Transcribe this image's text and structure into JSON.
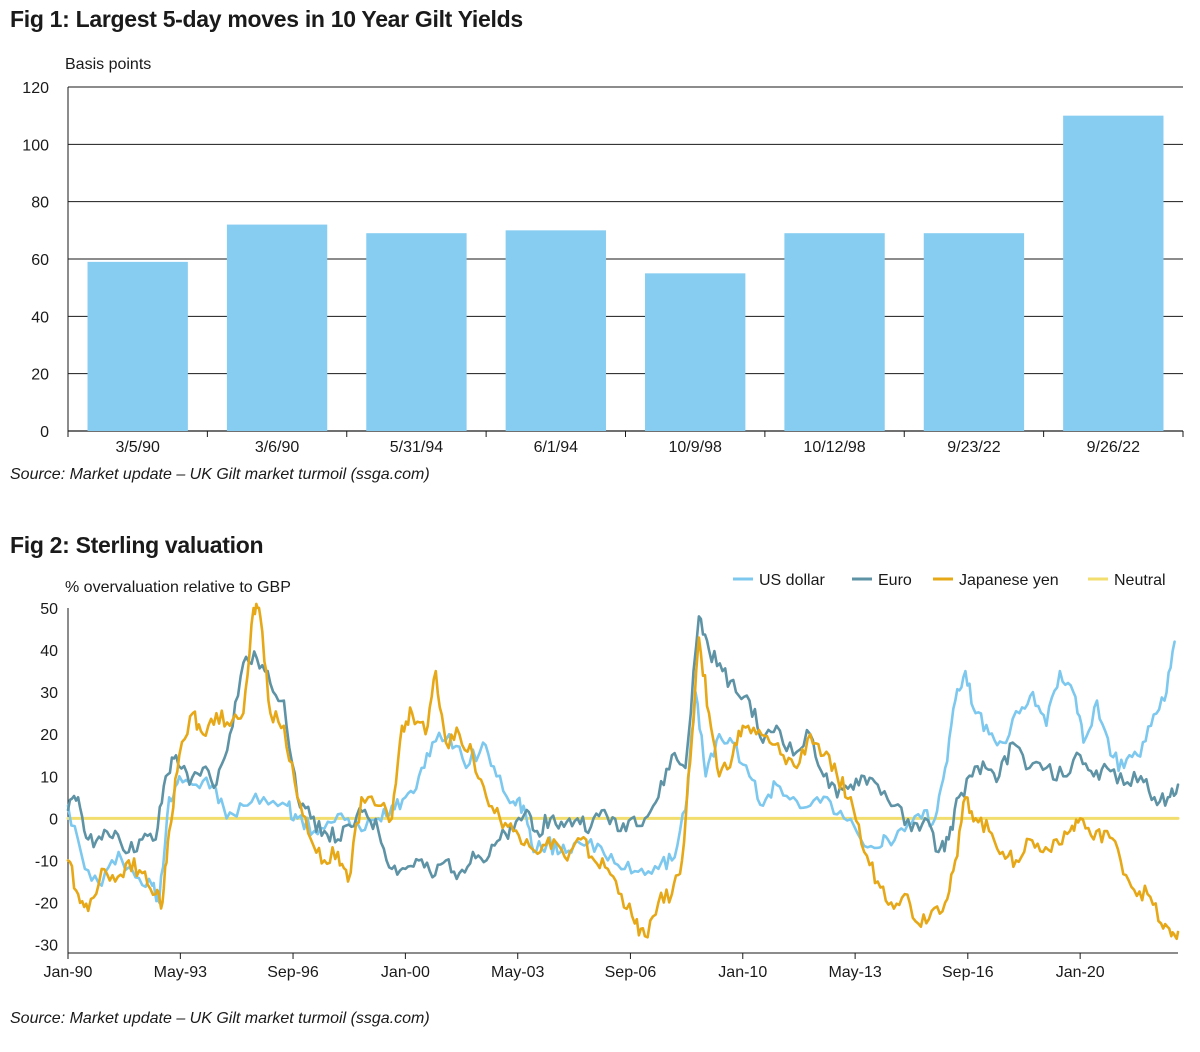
{
  "fig1": {
    "title": "Fig 1: Largest 5-day moves in 10 Year Gilt Yields",
    "source": "Source: Market update – UK Gilt market turmoil (ssga.com)"
  },
  "fig2": {
    "title": "Fig 2: Sterling valuation",
    "source": "Source: Market update – UK Gilt market turmoil (ssga.com)"
  },
  "chart_data": [
    {
      "type": "bar",
      "title": "Fig 1: Largest 5-day moves in 10 Year Gilt Yields",
      "ylabel": "Basis points",
      "xlabel": "",
      "categories": [
        "3/5/90",
        "3/6/90",
        "5/31/94",
        "6/1/94",
        "10/9/98",
        "10/12/98",
        "9/23/22",
        "9/26/22"
      ],
      "values": [
        59,
        72,
        69,
        70,
        55,
        69,
        69,
        110
      ],
      "ylim": [
        0,
        120
      ],
      "yticks": [
        0,
        20,
        40,
        60,
        80,
        100,
        120
      ],
      "grid": true,
      "colors": {
        "bar": "#87cdf2"
      }
    },
    {
      "type": "line",
      "title": "Fig 2: Sterling valuation",
      "ylabel": "% overvaluation relative to GBP",
      "xlabel": "",
      "xlim": [
        1990.0,
        2022.9
      ],
      "ylim": [
        -32,
        50
      ],
      "yticks": [
        -30,
        -20,
        -10,
        0,
        10,
        20,
        30,
        40,
        50
      ],
      "xticks": [
        {
          "label": "Jan-90",
          "x": 1990.0
        },
        {
          "label": "May-93",
          "x": 1993.33
        },
        {
          "label": "Sep-96",
          "x": 1996.67
        },
        {
          "label": "Jan-00",
          "x": 2000.0
        },
        {
          "label": "May-03",
          "x": 2003.33
        },
        {
          "label": "Sep-06",
          "x": 2006.67
        },
        {
          "label": "Jan-10",
          "x": 2010.0
        },
        {
          "label": "May-13",
          "x": 2013.33
        },
        {
          "label": "Sep-16",
          "x": 2016.67
        },
        {
          "label": "Jan-20",
          "x": 2020.0
        }
      ],
      "legend_position": "top-right",
      "series": [
        {
          "name": "US dollar",
          "color": "#7dc8ee",
          "points": [
            [
              1990.0,
              3
            ],
            [
              1990.5,
              -12
            ],
            [
              1991.0,
              -16
            ],
            [
              1991.5,
              -8
            ],
            [
              1992.0,
              -14
            ],
            [
              1992.5,
              -16
            ],
            [
              1992.7,
              -20
            ],
            [
              1993.0,
              5
            ],
            [
              1993.3,
              10
            ],
            [
              1993.8,
              8
            ],
            [
              1994.3,
              8
            ],
            [
              1994.7,
              0
            ],
            [
              1995.2,
              3
            ],
            [
              1995.8,
              5
            ],
            [
              1996.5,
              3
            ],
            [
              1996.8,
              0
            ],
            [
              1997.3,
              -3
            ],
            [
              1997.8,
              -1
            ],
            [
              1998.3,
              0
            ],
            [
              1998.7,
              -3
            ],
            [
              1999.2,
              0
            ],
            [
              1999.6,
              3
            ],
            [
              2000.0,
              5
            ],
            [
              2000.4,
              10
            ],
            [
              2000.8,
              18
            ],
            [
              2001.3,
              20
            ],
            [
              2001.8,
              12
            ],
            [
              2002.3,
              18
            ],
            [
              2002.7,
              10
            ],
            [
              2003.2,
              4
            ],
            [
              2003.5,
              3
            ],
            [
              2003.8,
              -8
            ],
            [
              2004.2,
              -6
            ],
            [
              2004.6,
              -8
            ],
            [
              2005.0,
              -6
            ],
            [
              2005.5,
              -5
            ],
            [
              2006.0,
              -10
            ],
            [
              2006.5,
              -12
            ],
            [
              2007.0,
              -12
            ],
            [
              2007.5,
              -12
            ],
            [
              2007.9,
              -10
            ],
            [
              2008.3,
              2
            ],
            [
              2008.6,
              30
            ],
            [
              2008.9,
              10
            ],
            [
              2009.3,
              20
            ],
            [
              2009.7,
              18
            ],
            [
              2010.2,
              10
            ],
            [
              2010.6,
              3
            ],
            [
              2011.0,
              8
            ],
            [
              2011.5,
              5
            ],
            [
              2012.0,
              3
            ],
            [
              2012.5,
              5
            ],
            [
              2013.0,
              0
            ],
            [
              2013.5,
              -5
            ],
            [
              2014.0,
              -7
            ],
            [
              2014.3,
              -5
            ],
            [
              2014.8,
              -3
            ],
            [
              2015.3,
              0
            ],
            [
              2015.7,
              0
            ],
            [
              2016.0,
              12
            ],
            [
              2016.3,
              28
            ],
            [
              2016.6,
              35
            ],
            [
              2016.9,
              25
            ],
            [
              2017.3,
              20
            ],
            [
              2017.7,
              18
            ],
            [
              2018.2,
              25
            ],
            [
              2018.6,
              30
            ],
            [
              2019.0,
              22
            ],
            [
              2019.4,
              35
            ],
            [
              2019.8,
              30
            ],
            [
              2020.1,
              18
            ],
            [
              2020.5,
              28
            ],
            [
              2020.9,
              15
            ],
            [
              2021.3,
              12
            ],
            [
              2021.7,
              15
            ],
            [
              2022.1,
              22
            ],
            [
              2022.5,
              28
            ],
            [
              2022.8,
              42
            ]
          ]
        },
        {
          "name": "Euro",
          "color": "#5e93a6",
          "points": [
            [
              1990.0,
              2
            ],
            [
              1990.3,
              5
            ],
            [
              1990.6,
              -5
            ],
            [
              1991.0,
              -5
            ],
            [
              1991.4,
              -3
            ],
            [
              1991.8,
              -8
            ],
            [
              1992.2,
              -5
            ],
            [
              1992.6,
              -5
            ],
            [
              1992.9,
              10
            ],
            [
              1993.2,
              15
            ],
            [
              1993.6,
              8
            ],
            [
              1994.0,
              12
            ],
            [
              1994.4,
              8
            ],
            [
              1994.8,
              20
            ],
            [
              1995.2,
              37
            ],
            [
              1995.6,
              38
            ],
            [
              1996.0,
              32
            ],
            [
              1996.4,
              28
            ],
            [
              1996.8,
              5
            ],
            [
              1997.2,
              0
            ],
            [
              1997.6,
              -3
            ],
            [
              1998.0,
              -5
            ],
            [
              1998.4,
              -2
            ],
            [
              1998.8,
              2
            ],
            [
              1999.2,
              -3
            ],
            [
              1999.6,
              -12
            ],
            [
              2000.0,
              -12
            ],
            [
              2000.4,
              -10
            ],
            [
              2000.8,
              -14
            ],
            [
              2001.2,
              -10
            ],
            [
              2001.6,
              -13
            ],
            [
              2002.0,
              -8
            ],
            [
              2002.4,
              -10
            ],
            [
              2002.8,
              -5
            ],
            [
              2003.2,
              -3
            ],
            [
              2003.6,
              2
            ],
            [
              2003.9,
              -3
            ],
            [
              2004.3,
              0
            ],
            [
              2004.7,
              -2
            ],
            [
              2005.1,
              0
            ],
            [
              2005.5,
              -2
            ],
            [
              2005.9,
              2
            ],
            [
              2006.3,
              -3
            ],
            [
              2006.7,
              0
            ],
            [
              2007.1,
              0
            ],
            [
              2007.5,
              5
            ],
            [
              2007.9,
              15
            ],
            [
              2008.3,
              12
            ],
            [
              2008.7,
              48
            ],
            [
              2009.0,
              40
            ],
            [
              2009.4,
              35
            ],
            [
              2009.8,
              30
            ],
            [
              2010.2,
              28
            ],
            [
              2010.6,
              18
            ],
            [
              2011.0,
              22
            ],
            [
              2011.5,
              15
            ],
            [
              2012.0,
              20
            ],
            [
              2012.4,
              10
            ],
            [
              2012.8,
              5
            ],
            [
              2013.2,
              8
            ],
            [
              2013.6,
              10
            ],
            [
              2014.0,
              8
            ],
            [
              2014.5,
              3
            ],
            [
              2015.0,
              -3
            ],
            [
              2015.4,
              0
            ],
            [
              2015.8,
              -8
            ],
            [
              2016.1,
              -5
            ],
            [
              2016.4,
              5
            ],
            [
              2016.8,
              10
            ],
            [
              2017.2,
              12
            ],
            [
              2017.6,
              10
            ],
            [
              2018.0,
              18
            ],
            [
              2018.5,
              12
            ],
            [
              2019.0,
              12
            ],
            [
              2019.5,
              10
            ],
            [
              2020.0,
              15
            ],
            [
              2020.4,
              10
            ],
            [
              2020.8,
              12
            ],
            [
              2021.3,
              8
            ],
            [
              2021.8,
              10
            ],
            [
              2022.2,
              5
            ],
            [
              2022.6,
              5
            ],
            [
              2022.9,
              8
            ]
          ]
        },
        {
          "name": "Japanese yen",
          "color": "#e6a817",
          "points": [
            [
              1990.0,
              -10
            ],
            [
              1990.3,
              -18
            ],
            [
              1990.6,
              -22
            ],
            [
              1991.0,
              -12
            ],
            [
              1991.4,
              -15
            ],
            [
              1991.8,
              -10
            ],
            [
              1992.2,
              -13
            ],
            [
              1992.6,
              -18
            ],
            [
              1992.8,
              -20
            ],
            [
              1993.0,
              -3
            ],
            [
              1993.3,
              15
            ],
            [
              1993.7,
              25
            ],
            [
              1994.0,
              20
            ],
            [
              1994.4,
              25
            ],
            [
              1994.8,
              22
            ],
            [
              1995.2,
              25
            ],
            [
              1995.5,
              50
            ],
            [
              1995.7,
              48
            ],
            [
              1996.0,
              25
            ],
            [
              1996.4,
              22
            ],
            [
              1996.8,
              5
            ],
            [
              1997.2,
              -5
            ],
            [
              1997.6,
              -10
            ],
            [
              1998.0,
              -8
            ],
            [
              1998.3,
              -15
            ],
            [
              1998.7,
              5
            ],
            [
              1999.2,
              3
            ],
            [
              1999.6,
              0
            ],
            [
              1999.9,
              22
            ],
            [
              2000.2,
              25
            ],
            [
              2000.6,
              20
            ],
            [
              2000.9,
              35
            ],
            [
              2001.2,
              18
            ],
            [
              2001.6,
              20
            ],
            [
              2002.0,
              15
            ],
            [
              2002.4,
              5
            ],
            [
              2002.8,
              0
            ],
            [
              2003.2,
              -3
            ],
            [
              2003.6,
              -5
            ],
            [
              2004.0,
              -8
            ],
            [
              2004.4,
              -5
            ],
            [
              2004.8,
              -10
            ],
            [
              2005.2,
              -5
            ],
            [
              2005.6,
              -10
            ],
            [
              2006.0,
              -12
            ],
            [
              2006.4,
              -18
            ],
            [
              2006.8,
              -25
            ],
            [
              2007.1,
              -28
            ],
            [
              2007.5,
              -20
            ],
            [
              2007.9,
              -18
            ],
            [
              2008.2,
              -10
            ],
            [
              2008.5,
              20
            ],
            [
              2008.7,
              43
            ],
            [
              2009.0,
              25
            ],
            [
              2009.3,
              10
            ],
            [
              2009.7,
              15
            ],
            [
              2010.0,
              22
            ],
            [
              2010.4,
              20
            ],
            [
              2010.8,
              18
            ],
            [
              2011.2,
              15
            ],
            [
              2011.6,
              12
            ],
            [
              2012.0,
              20
            ],
            [
              2012.4,
              15
            ],
            [
              2012.8,
              10
            ],
            [
              2013.2,
              5
            ],
            [
              2013.6,
              -8
            ],
            [
              2014.0,
              -15
            ],
            [
              2014.4,
              -20
            ],
            [
              2014.8,
              -18
            ],
            [
              2015.2,
              -25
            ],
            [
              2015.6,
              -22
            ],
            [
              2016.0,
              -20
            ],
            [
              2016.3,
              -10
            ],
            [
              2016.6,
              5
            ],
            [
              2016.9,
              0
            ],
            [
              2017.3,
              -3
            ],
            [
              2017.7,
              -8
            ],
            [
              2018.1,
              -10
            ],
            [
              2018.5,
              -5
            ],
            [
              2018.9,
              -8
            ],
            [
              2019.3,
              -5
            ],
            [
              2019.7,
              -3
            ],
            [
              2020.0,
              0
            ],
            [
              2020.4,
              -5
            ],
            [
              2020.8,
              -3
            ],
            [
              2021.2,
              -10
            ],
            [
              2021.6,
              -17
            ],
            [
              2022.0,
              -18
            ],
            [
              2022.4,
              -25
            ],
            [
              2022.7,
              -28
            ],
            [
              2022.9,
              -27
            ]
          ]
        },
        {
          "name": "Neutral",
          "color": "#f2de6e",
          "points": [
            [
              1990.0,
              0
            ],
            [
              2022.9,
              0
            ]
          ]
        }
      ]
    }
  ]
}
